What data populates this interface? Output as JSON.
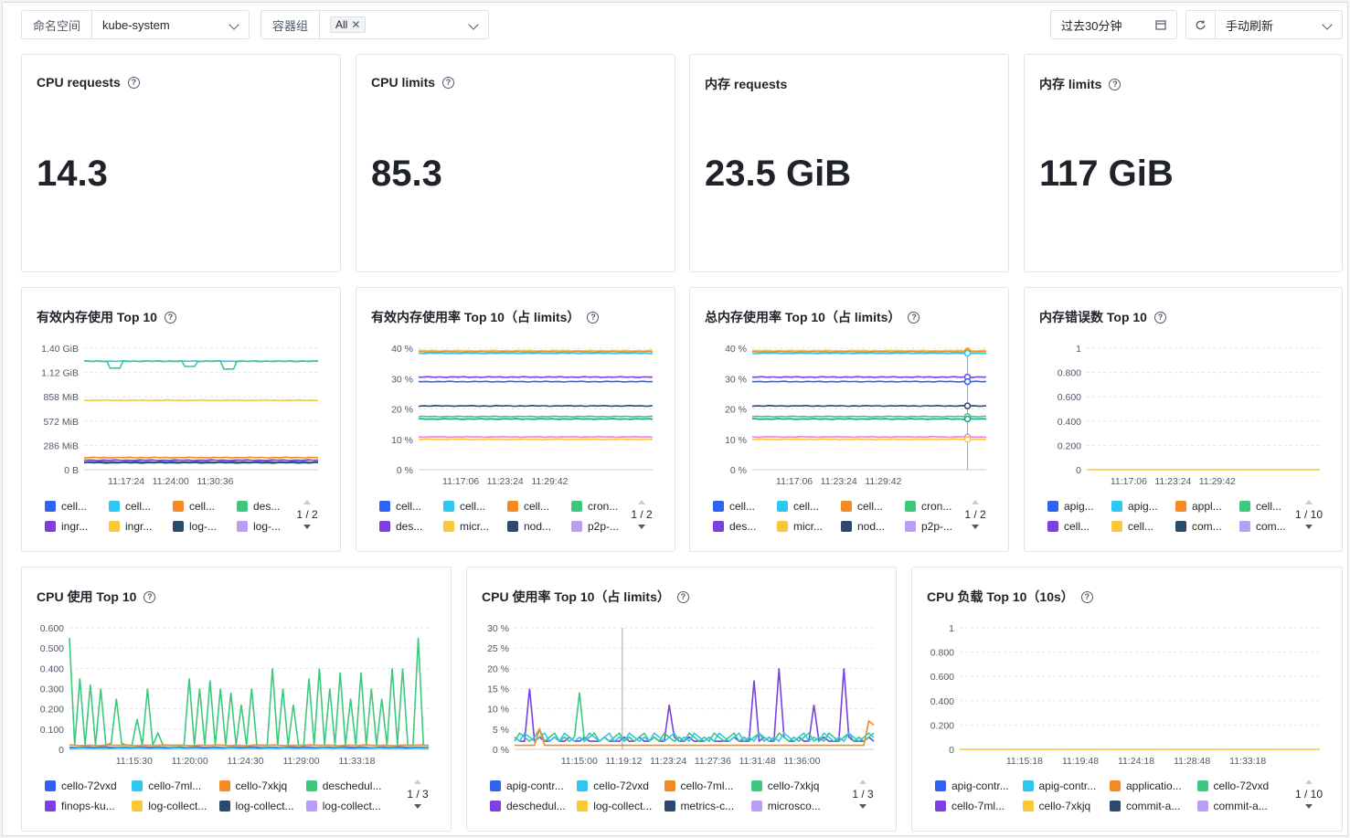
{
  "toolbar": {
    "namespace_label": "命名空间",
    "namespace_value": "kube-system",
    "pod_label": "容器组",
    "pod_tag": "All",
    "time_range": "过去30分钟",
    "refresh_mode": "手动刷新"
  },
  "stats": [
    {
      "title": "CPU requests",
      "value": "14.3"
    },
    {
      "title": "CPU limits",
      "value": "85.3"
    },
    {
      "title": "内存 requests",
      "value": "23.5 GiB"
    },
    {
      "title": "内存 limits",
      "value": "117 GiB"
    }
  ],
  "charts": [
    {
      "title": "有效内存使用 Top 10",
      "pager": "1 / 2",
      "legend": [
        "cell...",
        "cell...",
        "cell...",
        "des...",
        "ingr...",
        "ingr...",
        "log-...",
        "log-..."
      ]
    },
    {
      "title": "有效内存使用率 Top 10（占 limits）",
      "pager": "1 / 2",
      "legend": [
        "cell...",
        "cell...",
        "cell...",
        "cron...",
        "des...",
        "micr...",
        "nod...",
        "p2p-..."
      ]
    },
    {
      "title": "总内存使用率 Top 10（占 limits）",
      "pager": "1 / 2",
      "legend": [
        "cell...",
        "cell...",
        "cell...",
        "cron...",
        "des...",
        "micr...",
        "nod...",
        "p2p-..."
      ]
    },
    {
      "title": "内存错误数 Top 10",
      "pager": "1 / 10",
      "legend": [
        "apig...",
        "apig...",
        "appl...",
        "cell...",
        "cell...",
        "cell...",
        "com...",
        "com..."
      ]
    },
    {
      "title": "CPU 使用 Top 10",
      "pager": "1 / 3",
      "legend": [
        "cello-72vxd",
        "cello-7ml...",
        "cello-7xkjq",
        "deschedul...",
        "finops-ku...",
        "log-collect...",
        "log-collect...",
        "log-collect..."
      ]
    },
    {
      "title": "CPU 使用率 Top 10（占 limits）",
      "pager": "1 / 3",
      "legend": [
        "apig-contr...",
        "cello-72vxd",
        "cello-7ml...",
        "cello-7xkjq",
        "deschedul...",
        "log-collect...",
        "metrics-c...",
        "microsco..."
      ]
    },
    {
      "title": "CPU 负载 Top 10（10s）",
      "pager": "1 / 10",
      "legend": [
        "apig-contr...",
        "apig-contr...",
        "applicatio...",
        "cello-72vxd",
        "cello-7ml...",
        "cello-7xkjq",
        "commit-a...",
        "commit-a..."
      ]
    }
  ],
  "palette": [
    "#2e62ef",
    "#2ec7f0",
    "#f48a24",
    "#3dc97d",
    "#7c3fe0",
    "#f8c73a",
    "#2b4a6d",
    "#b99ef5"
  ],
  "chart_data": [
    {
      "type": "line",
      "title": "有效内存使用 Top 10",
      "yticks": [
        "1.40 GiB",
        "1.12 GiB",
        "858 MiB",
        "572 MiB",
        "286 MiB",
        "0 B"
      ],
      "xticks": [
        "11:17:24",
        "11:24:00",
        "11:30:36"
      ],
      "ylim": [
        0,
        1.4
      ],
      "y_unit": "GiB",
      "series": [
        {
          "color": "#2ec7f0",
          "level": 1.25
        },
        {
          "color": "#3dc97d",
          "level": 1.25,
          "dips": [
            [
              0.13,
              1.17
            ],
            [
              0.45,
              1.19
            ],
            [
              0.62,
              1.16
            ]
          ]
        },
        {
          "color": "#f8c73a",
          "level": 0.8
        },
        {
          "color": "#f48a24",
          "level": 0.14
        },
        {
          "color": "#7c3fe0",
          "level": 0.11
        },
        {
          "color": "#2e62ef",
          "level": 0.09
        },
        {
          "color": "#2b4a6d",
          "level": 0.08
        }
      ]
    },
    {
      "type": "line",
      "title": "有效内存使用率 Top 10（占 limits）",
      "yticks": [
        "40 %",
        "30 %",
        "20 %",
        "10 %",
        "0 %"
      ],
      "xticks": [
        "11:17:06",
        "11:23:24",
        "11:29:42"
      ],
      "ylim": [
        0,
        40
      ],
      "y_unit": "%",
      "series": [
        {
          "color": "#f8c73a",
          "level": 39.2
        },
        {
          "color": "#f48a24",
          "level": 38.8
        },
        {
          "color": "#2ec7f0",
          "level": 38.3
        },
        {
          "color": "#7c3fe0",
          "level": 30.5
        },
        {
          "color": "#2e62ef",
          "level": 29.0
        },
        {
          "color": "#2b4a6d",
          "level": 21.0
        },
        {
          "color": "#3dc97d",
          "level": 17.5
        },
        {
          "color": "#1f9e8f",
          "level": 16.7
        },
        {
          "color": "#f580d8",
          "level": 10.8
        },
        {
          "color": "#f8c73a",
          "level": 10.0
        }
      ]
    },
    {
      "type": "line",
      "title": "总内存使用率 Top 10（占 limits）",
      "yticks": [
        "40 %",
        "30 %",
        "20 %",
        "10 %",
        "0 %"
      ],
      "xticks": [
        "11:17:06",
        "11:23:24",
        "11:29:42"
      ],
      "ylim": [
        0,
        40
      ],
      "y_unit": "%",
      "series": [
        {
          "color": "#f8c73a",
          "level": 39.2
        },
        {
          "color": "#f48a24",
          "level": 38.8
        },
        {
          "color": "#2ec7f0",
          "level": 38.3
        },
        {
          "color": "#7c3fe0",
          "level": 30.5
        },
        {
          "color": "#2e62ef",
          "level": 29.0
        },
        {
          "color": "#2b4a6d",
          "level": 21.0
        },
        {
          "color": "#3dc97d",
          "level": 17.5
        },
        {
          "color": "#1f9e8f",
          "level": 16.7
        },
        {
          "color": "#f580d8",
          "level": 10.8
        },
        {
          "color": "#f8c73a",
          "level": 10.0
        }
      ]
    },
    {
      "type": "line",
      "title": "内存错误数 Top 10",
      "yticks": [
        "1",
        "0.800",
        "0.600",
        "0.400",
        "0.200",
        "0"
      ],
      "xticks": [
        "11:17:06",
        "11:23:24",
        "11:29:42"
      ],
      "ylim": [
        0,
        1
      ],
      "series": [
        {
          "color": "#f8c73a",
          "level": 0
        }
      ]
    },
    {
      "type": "line",
      "title": "CPU 使用 Top 10",
      "yticks": [
        "0.600",
        "0.500",
        "0.400",
        "0.300",
        "0.200",
        "0.100",
        "0"
      ],
      "xticks": [
        "11:15:30",
        "11:20:00",
        "11:24:30",
        "11:29:00",
        "11:33:18"
      ],
      "ylim": [
        0,
        0.6
      ],
      "series": [
        {
          "color": "#3dc97d",
          "values": [
            0.55,
            0.02,
            0.35,
            0.02,
            0.32,
            0.02,
            0.3,
            0.02,
            0.03,
            0.25,
            0.03,
            0.02,
            0.02,
            0.15,
            0.02,
            0.3,
            0.02,
            0.08,
            0.02,
            0.02,
            0.02,
            0.02,
            0.02,
            0.35,
            0.02,
            0.3,
            0.02,
            0.34,
            0.02,
            0.3,
            0.02,
            0.28,
            0.02,
            0.22,
            0.02,
            0.3,
            0.02,
            0.02,
            0.02,
            0.4,
            0.02,
            0.3,
            0.02,
            0.22,
            0.02,
            0.02,
            0.35,
            0.02,
            0.4,
            0.02,
            0.3,
            0.02,
            0.38,
            0.02,
            0.25,
            0.02,
            0.38,
            0.02,
            0.3,
            0.02,
            0.25,
            0.02,
            0.4,
            0.02,
            0.4,
            0.02,
            0.02,
            0.55,
            0.02,
            0.02
          ]
        },
        {
          "color": "#f48a24",
          "level": 0.02
        },
        {
          "color": "#7c3fe0",
          "level": 0.01
        },
        {
          "color": "#2ec7f0",
          "level": 0.005
        }
      ]
    },
    {
      "type": "line",
      "title": "CPU 使用率 Top 10（占 limits）",
      "yticks": [
        "30 %",
        "25 %",
        "20 %",
        "15 %",
        "10 %",
        "5 %",
        "0 %"
      ],
      "xticks": [
        "11:15:00",
        "11:19:12",
        "11:23:24",
        "11:27:36",
        "11:31:48",
        "11:36:00"
      ],
      "ylim": [
        0,
        30
      ],
      "y_unit": "%",
      "series": [
        {
          "color": "#7c3fe0",
          "values": [
            3,
            2,
            2,
            15,
            2,
            3,
            2,
            2,
            3,
            2,
            2,
            3,
            2,
            2,
            3,
            2,
            2,
            2,
            3,
            2,
            2,
            2,
            3,
            2,
            2,
            3,
            2,
            2,
            3,
            2,
            2,
            11,
            3,
            2,
            2,
            3,
            2,
            2,
            2,
            3,
            2,
            2,
            2,
            2,
            3,
            2,
            2,
            2,
            17,
            2,
            3,
            2,
            2,
            20,
            3,
            2,
            2,
            3,
            2,
            2,
            11,
            2,
            3,
            2,
            2,
            2,
            20,
            3,
            2,
            2,
            2,
            3,
            2
          ]
        },
        {
          "color": "#3dc97d",
          "values": [
            2,
            4,
            3,
            2,
            3,
            5,
            2,
            3,
            4,
            2,
            3,
            2,
            3,
            14,
            2,
            3,
            4,
            2,
            3,
            2,
            3,
            4,
            2,
            3,
            2,
            3,
            4,
            2,
            3,
            2,
            4,
            3,
            2,
            3,
            2,
            4,
            3,
            2,
            3,
            2,
            4,
            3,
            2,
            3,
            4,
            2,
            3,
            2,
            3,
            4,
            2,
            3,
            2,
            4,
            3,
            2,
            3,
            2,
            3,
            4,
            2,
            3,
            2,
            4,
            3,
            2,
            3,
            4,
            2,
            3,
            2,
            3,
            4
          ]
        },
        {
          "color": "#2ec7f0",
          "values": [
            3,
            2,
            4,
            3,
            2,
            3,
            4,
            2,
            3,
            2,
            4,
            3,
            2,
            3,
            2,
            4,
            3,
            2,
            3,
            4,
            2,
            3,
            2,
            4,
            3,
            2,
            3,
            2,
            4,
            3,
            2,
            3,
            4,
            2,
            3,
            2,
            4,
            3,
            2,
            3,
            2,
            4,
            3,
            2,
            3,
            4,
            2,
            3,
            2,
            4,
            3,
            2,
            3,
            2,
            4,
            3,
            2,
            3,
            4,
            2,
            3,
            2,
            4,
            3,
            2,
            3,
            2,
            4,
            3,
            2,
            3,
            4,
            3
          ]
        },
        {
          "color": "#f48a24",
          "values": [
            1,
            1,
            1,
            1,
            1,
            5,
            1,
            1,
            1,
            1,
            1,
            1,
            1,
            1,
            1,
            1,
            1,
            1,
            1,
            1,
            1,
            1,
            1,
            1,
            1,
            1,
            1,
            1,
            1,
            1,
            1,
            1,
            1,
            1,
            1,
            1,
            1,
            1,
            1,
            1,
            1,
            1,
            1,
            1,
            1,
            1,
            1,
            1,
            1,
            1,
            1,
            1,
            1,
            1,
            1,
            1,
            1,
            1,
            1,
            1,
            1,
            1,
            1,
            1,
            1,
            1,
            1,
            1,
            1,
            1,
            1,
            7,
            6
          ]
        }
      ]
    },
    {
      "type": "line",
      "title": "CPU 负载 Top 10（10s）",
      "yticks": [
        "1",
        "0.800",
        "0.600",
        "0.400",
        "0.200",
        "0"
      ],
      "xticks": [
        "11:15:18",
        "11:19:48",
        "11:24:18",
        "11:28:48",
        "11:33:18"
      ],
      "ylim": [
        0,
        1
      ],
      "series": [
        {
          "color": "#f8c73a",
          "level": 0
        }
      ]
    }
  ]
}
